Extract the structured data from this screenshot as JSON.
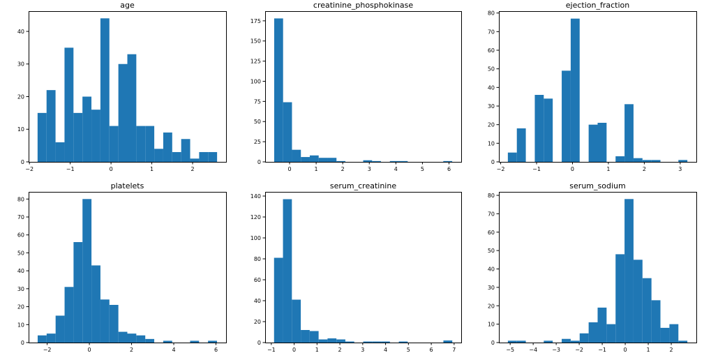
{
  "chart_data": [
    {
      "type": "bar",
      "title": "age",
      "bin_edges": [
        -1.8,
        -1.58,
        -1.36,
        -1.14,
        -0.92,
        -0.7,
        -0.48,
        -0.26,
        -0.04,
        0.18,
        0.4,
        0.62,
        0.84,
        1.06,
        1.28,
        1.5,
        1.72,
        1.94,
        2.16,
        2.38,
        2.6
      ],
      "values": [
        15,
        22,
        6,
        35,
        15,
        20,
        16,
        44,
        11,
        30,
        33,
        11,
        11,
        4,
        9,
        3,
        7,
        1,
        3,
        3
      ],
      "xlim": [
        -2.02,
        2.82
      ],
      "ylim": [
        0,
        46.2
      ],
      "xticks": [
        -2,
        -1,
        0,
        1,
        2
      ],
      "xtick_labels": [
        "−2",
        "−1",
        "0",
        "1",
        "2"
      ],
      "yticks": [
        0,
        10,
        20,
        30,
        40
      ],
      "ytick_labels": [
        "0",
        "10",
        "20",
        "30",
        "40"
      ]
    },
    {
      "type": "bar",
      "title": "creatinine_phosphokinase",
      "bin_edges": [
        -0.58,
        -0.245,
        0.09,
        0.425,
        0.76,
        1.095,
        1.43,
        1.765,
        2.1,
        2.435,
        2.77,
        3.105,
        3.44,
        3.775,
        4.11,
        4.445,
        4.78,
        5.115,
        5.45,
        5.785,
        6.12
      ],
      "values": [
        178,
        74,
        15,
        6,
        8,
        5,
        5,
        1,
        0,
        0,
        2,
        1,
        0,
        1,
        1,
        0,
        0,
        0,
        0,
        1
      ],
      "xlim": [
        -0.92,
        6.46
      ],
      "ylim": [
        0,
        187
      ],
      "xticks": [
        0,
        1,
        2,
        3,
        4,
        5,
        6
      ],
      "xtick_labels": [
        "0",
        "1",
        "2",
        "3",
        "4",
        "5",
        "6"
      ],
      "yticks": [
        0,
        25,
        50,
        75,
        100,
        125,
        150,
        175
      ],
      "ytick_labels": [
        "0",
        "25",
        "50",
        "75",
        "100",
        "125",
        "150",
        "175"
      ]
    },
    {
      "type": "bar",
      "title": "ejection_fraction",
      "bin_edges": [
        -1.8,
        -1.55,
        -1.3,
        -1.05,
        -0.8,
        -0.55,
        -0.3,
        -0.05,
        0.2,
        0.45,
        0.7,
        0.95,
        1.2,
        1.45,
        1.7,
        1.95,
        2.2,
        2.45,
        2.7,
        2.95,
        3.2
      ],
      "values": [
        5,
        18,
        0,
        36,
        34,
        0,
        49,
        77,
        0,
        20,
        21,
        0,
        3,
        31,
        2,
        1,
        1,
        0,
        0,
        1
      ],
      "xlim": [
        -2.05,
        3.45
      ],
      "ylim": [
        0,
        81
      ],
      "xticks": [
        -2,
        -1,
        0,
        1,
        2,
        3
      ],
      "xtick_labels": [
        "−2",
        "−1",
        "0",
        "1",
        "2",
        "3"
      ],
      "yticks": [
        0,
        10,
        20,
        30,
        40,
        50,
        60,
        70,
        80
      ],
      "ytick_labels": [
        "0",
        "10",
        "20",
        "30",
        "40",
        "50",
        "60",
        "70",
        "80"
      ]
    },
    {
      "type": "bar",
      "title": "platelets",
      "bin_edges": [
        -2.45,
        -2.025,
        -1.6,
        -1.175,
        -0.75,
        -0.325,
        0.1,
        0.525,
        0.95,
        1.375,
        1.8,
        2.225,
        2.65,
        3.075,
        3.5,
        3.925,
        4.35,
        4.775,
        5.2,
        5.625,
        6.05
      ],
      "values": [
        4,
        5,
        15,
        31,
        56,
        80,
        43,
        24,
        21,
        6,
        5,
        4,
        2,
        0,
        1,
        0,
        0,
        1,
        0,
        1
      ],
      "xlim": [
        -2.88,
        6.48
      ],
      "ylim": [
        0,
        84
      ],
      "xticks": [
        -2,
        0,
        2,
        4,
        6
      ],
      "xtick_labels": [
        "−2",
        "0",
        "2",
        "4",
        "6"
      ],
      "yticks": [
        0,
        10,
        20,
        30,
        40,
        50,
        60,
        70,
        80
      ],
      "ytick_labels": [
        "0",
        "10",
        "20",
        "30",
        "40",
        "50",
        "60",
        "70",
        "80"
      ]
    },
    {
      "type": "bar",
      "title": "serum_creatinine",
      "bin_edges": [
        -0.88,
        -0.49,
        -0.1,
        0.29,
        0.68,
        1.07,
        1.46,
        1.85,
        2.24,
        2.63,
        3.02,
        3.41,
        3.8,
        4.19,
        4.58,
        4.97,
        5.36,
        5.75,
        6.14,
        6.53,
        6.92
      ],
      "values": [
        81,
        137,
        41,
        12,
        11,
        3,
        4,
        3,
        1,
        0,
        1,
        1,
        1,
        0,
        1,
        0,
        0,
        0,
        0,
        2
      ],
      "xlim": [
        -1.27,
        7.31
      ],
      "ylim": [
        0,
        144
      ],
      "xticks": [
        -1,
        0,
        1,
        2,
        3,
        4,
        5,
        6,
        7
      ],
      "xtick_labels": [
        "−1",
        "0",
        "1",
        "2",
        "3",
        "4",
        "5",
        "6",
        "7"
      ],
      "yticks": [
        0,
        20,
        40,
        60,
        80,
        100,
        120,
        140
      ],
      "ytick_labels": [
        "0",
        "20",
        "40",
        "60",
        "80",
        "100",
        "120",
        "140"
      ]
    },
    {
      "type": "bar",
      "title": "serum_sodium",
      "bin_edges": [
        -5.1,
        -4.71,
        -4.32,
        -3.93,
        -3.54,
        -3.15,
        -2.76,
        -2.37,
        -1.98,
        -1.59,
        -1.2,
        -0.81,
        -0.42,
        -0.03,
        0.36,
        0.75,
        1.14,
        1.53,
        1.92,
        2.31,
        2.7
      ],
      "values": [
        1,
        1,
        0,
        0,
        1,
        0,
        2,
        1,
        5,
        11,
        19,
        10,
        48,
        78,
        45,
        35,
        23,
        8,
        10,
        1
      ],
      "xlim": [
        -5.49,
        3.09
      ],
      "ylim": [
        0,
        81.9
      ],
      "xticks": [
        -5,
        -4,
        -3,
        -2,
        -1,
        0,
        1,
        2
      ],
      "xtick_labels": [
        "−5",
        "−4",
        "−3",
        "−2",
        "−1",
        "0",
        "1",
        "2"
      ],
      "yticks": [
        0,
        10,
        20,
        30,
        40,
        50,
        60,
        70,
        80
      ],
      "ytick_labels": [
        "0",
        "10",
        "20",
        "30",
        "40",
        "50",
        "60",
        "70",
        "80"
      ]
    }
  ]
}
